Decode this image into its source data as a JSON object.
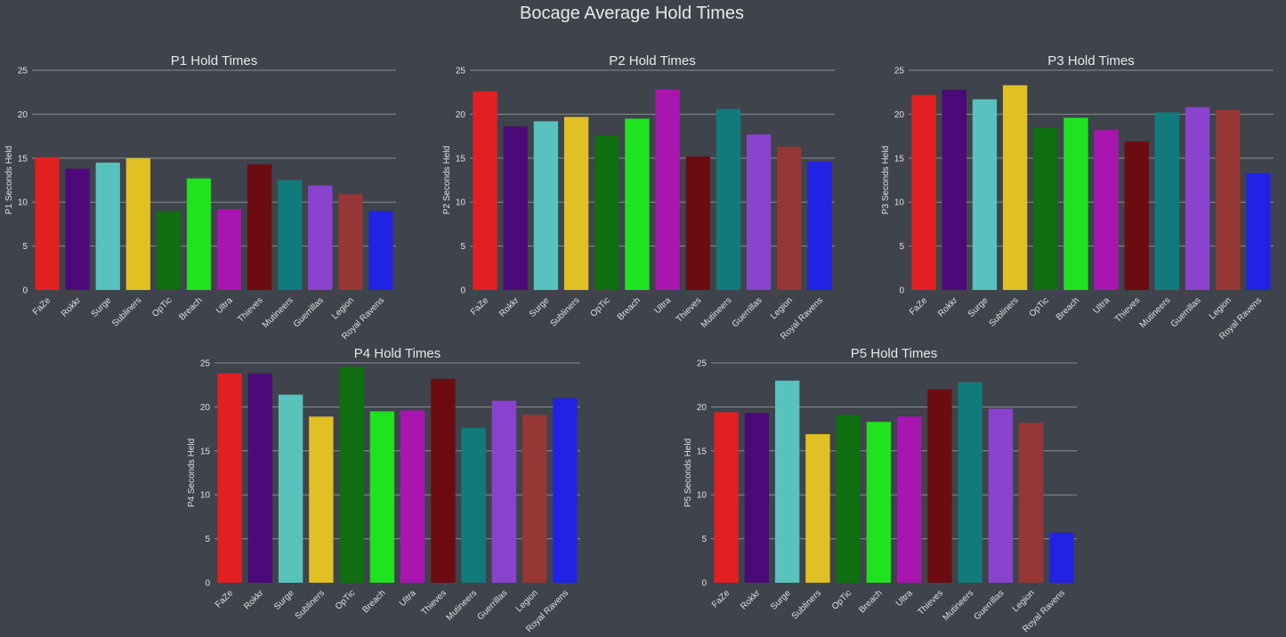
{
  "title": "Bocage Average Hold Times",
  "chart_data": [
    {
      "type": "bar",
      "title": "P1 Hold Times",
      "ylabel": "P1 Seconds Held",
      "ylim": [
        0,
        25
      ],
      "yticks": [
        0,
        5,
        10,
        15,
        20,
        25
      ],
      "grid": "horizontal",
      "categories": [
        "FaZe",
        "Rokkr",
        "Surge",
        "Subliners",
        "OpTic",
        "Breach",
        "Ultra",
        "Thieves",
        "Mutineers",
        "Guerrillas",
        "Legion",
        "Royal Ravens"
      ],
      "values": [
        15.1,
        13.8,
        14.5,
        15.0,
        9.0,
        12.7,
        9.2,
        14.3,
        12.5,
        11.9,
        10.9,
        9.0
      ]
    },
    {
      "type": "bar",
      "title": "P2 Hold Times",
      "ylabel": "P2 Seconds Held",
      "ylim": [
        0,
        25
      ],
      "yticks": [
        0,
        5,
        10,
        15,
        20,
        25
      ],
      "grid": "horizontal",
      "categories": [
        "FaZe",
        "Rokkr",
        "Surge",
        "Subliners",
        "OpTic",
        "Breach",
        "Ultra",
        "Thieves",
        "Mutineers",
        "Guerrillas",
        "Legion",
        "Royal Ravens"
      ],
      "values": [
        22.6,
        18.6,
        19.2,
        19.7,
        17.6,
        19.5,
        22.8,
        15.2,
        20.6,
        17.7,
        16.3,
        14.6
      ]
    },
    {
      "type": "bar",
      "title": "P3 Hold Times",
      "ylabel": "P3 Seconds Held",
      "ylim": [
        0,
        25
      ],
      "yticks": [
        0,
        5,
        10,
        15,
        20,
        25
      ],
      "grid": "horizontal",
      "categories": [
        "FaZe",
        "Rokkr",
        "Surge",
        "Subliners",
        "OpTic",
        "Breach",
        "Ultra",
        "Thieves",
        "Mutineers",
        "Guerrillas",
        "Legion",
        "Royal Ravens"
      ],
      "values": [
        22.2,
        22.8,
        21.7,
        23.3,
        18.5,
        19.6,
        18.2,
        16.9,
        20.2,
        20.8,
        20.5,
        13.3
      ]
    },
    {
      "type": "bar",
      "title": "P4 Hold Times",
      "ylabel": "P4 Seconds Held",
      "ylim": [
        0,
        25
      ],
      "yticks": [
        0,
        5,
        10,
        15,
        20,
        25
      ],
      "grid": "horizontal",
      "categories": [
        "FaZe",
        "Rokkr",
        "Surge",
        "Subliners",
        "OpTic",
        "Breach",
        "Ultra",
        "Thieves",
        "Mutineers",
        "Guerrillas",
        "Legion",
        "Royal Ravens"
      ],
      "values": [
        23.8,
        23.8,
        21.4,
        18.9,
        24.6,
        19.5,
        19.6,
        23.2,
        17.6,
        20.7,
        19.1,
        21.0
      ]
    },
    {
      "type": "bar",
      "title": "P5 Hold Times",
      "ylabel": "P5 Seconds Held",
      "ylim": [
        0,
        25
      ],
      "yticks": [
        0,
        5,
        10,
        15,
        20,
        25
      ],
      "grid": "horizontal",
      "categories": [
        "FaZe",
        "Rokkr",
        "Surge",
        "Subliners",
        "OpTic",
        "Breach",
        "Ultra",
        "Thieves",
        "Mutineers",
        "Guerrillas",
        "Legion",
        "Royal Ravens"
      ],
      "values": [
        19.4,
        19.3,
        23.0,
        16.9,
        19.1,
        18.3,
        18.9,
        22.0,
        22.8,
        19.8,
        18.2,
        5.7
      ]
    }
  ],
  "colors": [
    "#e32021",
    "#4b0a77",
    "#58c2bd",
    "#e0c022",
    "#0f6f11",
    "#1fe31f",
    "#a816af",
    "#6c0c11",
    "#117b7b",
    "#8a43cf",
    "#973735",
    "#2122e3"
  ]
}
